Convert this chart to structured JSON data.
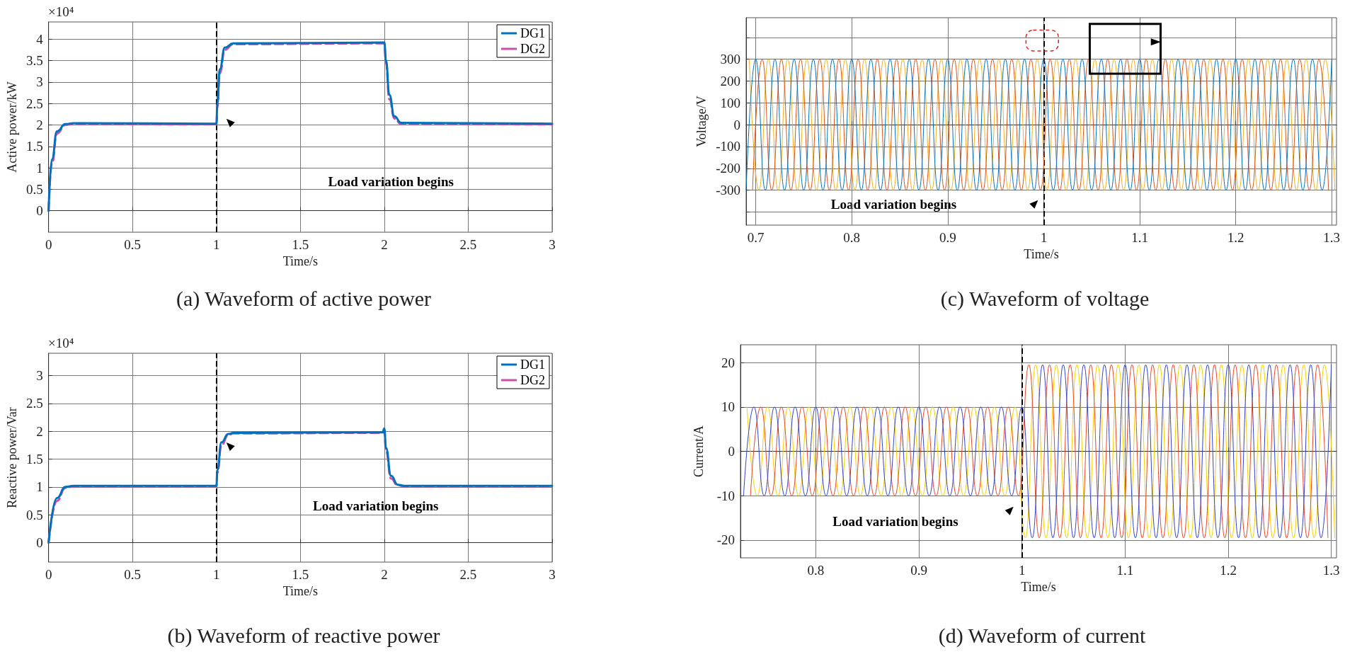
{
  "chart_data": [
    {
      "type": "line",
      "title": "(a) Waveform of active power",
      "xlabel": "Time/s",
      "ylabel": "Active power/kW",
      "annotations": [
        "×10⁴",
        "Load variation begins"
      ],
      "xlim": [
        0,
        3
      ],
      "xticks": [
        0,
        0.5,
        1,
        1.5,
        2,
        2.5,
        3
      ],
      "ylim": [
        -0.5,
        4.4
      ],
      "yticks": [
        0,
        0.5,
        1,
        1.5,
        2,
        2.5,
        3,
        3.5,
        4
      ],
      "grid": true,
      "legend": "top right",
      "marker": "none",
      "ref_lines": [
        {
          "axis": "x",
          "value": 1,
          "color": "#000000",
          "line_style": "dashed"
        }
      ],
      "series": [
        {
          "name": "DG1",
          "color": "#0072bd",
          "line_style": "solid",
          "x": [
            0,
            0.02,
            0.05,
            0.1,
            0.15,
            1,
            1.005,
            1.02,
            1.05,
            1.1,
            2,
            2.01,
            2.03,
            2.06,
            2.1,
            3
          ],
          "values": [
            0,
            1.2,
            1.85,
            2.02,
            2.04,
            2.03,
            2.5,
            3.3,
            3.8,
            3.9,
            3.92,
            3.5,
            2.7,
            2.2,
            2.05,
            2.03
          ]
        },
        {
          "name": "DG2",
          "color": "#cc4fa8",
          "line_style": "dashed",
          "x": [
            0,
            0.02,
            0.05,
            0.1,
            0.15,
            1,
            1.005,
            1.02,
            1.05,
            1.1,
            2,
            2.01,
            2.03,
            2.06,
            2.1,
            3
          ],
          "values": [
            0,
            1.1,
            1.8,
            2,
            2.02,
            2.01,
            2.4,
            3.2,
            3.75,
            3.88,
            3.9,
            3.45,
            2.6,
            2.15,
            2.02,
            2.01
          ]
        }
      ]
    },
    {
      "type": "line",
      "title": "(c) Waveform of voltage",
      "xlabel": "Time/s",
      "ylabel": "Voltage/V",
      "annotations": [
        "Load variation begins"
      ],
      "xlim": [
        0.69,
        1.305
      ],
      "xticks": [
        0.7,
        0.8,
        0.9,
        1,
        1.1,
        1.2,
        1.3
      ],
      "ylim": [
        -460,
        490
      ],
      "yticks": [
        {
          "value": -400,
          "label": null
        },
        -300,
        -200,
        -100,
        0,
        100,
        200,
        300,
        {
          "value": 400,
          "label": null
        }
      ],
      "grid": true,
      "marker": "none",
      "ref_lines": [
        {
          "axis": "x",
          "value": 1,
          "color": "#000000",
          "line_style": "dashed"
        }
      ],
      "series": [
        {
          "color": "#0072bd",
          "x": [
            0.69,
            0.7,
            0.71,
            0.72,
            0.73,
            0.74,
            0.75,
            0.76,
            0.77,
            0.78,
            0.79,
            0.8,
            0.81,
            0.82,
            0.83,
            0.84,
            0.85,
            0.86,
            0.87,
            0.88,
            0.89,
            0.9,
            0.91,
            0.92,
            0.93,
            0.94,
            0.95,
            0.96,
            0.97,
            0.98,
            0.99,
            1,
            1.01,
            1.02,
            1.03,
            1.04,
            1.05,
            1.06,
            1.07,
            1.08,
            1.09,
            1.1,
            1.11,
            1.12,
            1.13,
            1.14,
            1.15,
            1.16,
            1.17,
            1.18,
            1.19,
            1.2,
            1.21,
            1.22,
            1.23,
            1.24,
            1.25,
            1.26,
            1.27,
            1.28,
            1.29,
            1.3
          ],
          "values": [
            -300,
            300,
            -300,
            300,
            -300,
            300,
            -300,
            300,
            -300,
            300,
            -300,
            300,
            -300,
            300,
            -300,
            300,
            -300,
            300,
            -300,
            300,
            -300,
            300,
            -300,
            300,
            -300,
            300,
            -300,
            300,
            -300,
            300,
            -300,
            300,
            -300,
            300,
            -300,
            300,
            -300,
            300,
            -300,
            300,
            -300,
            300,
            -300,
            300,
            -300,
            300,
            -300,
            300,
            -300,
            300,
            -300,
            300,
            -300,
            300,
            -300,
            300,
            -300,
            300,
            -300,
            300,
            -300,
            300
          ]
        },
        {
          "color": "#d95319",
          "x": [
            0.6967,
            0.7067,
            0.7167,
            0.7267,
            0.7367,
            0.7467,
            0.7567,
            0.7667,
            0.7767,
            0.7867,
            0.7967,
            0.8067,
            0.8167,
            0.8267,
            0.8367,
            0.8467,
            0.8567,
            0.8667,
            0.8767,
            0.8867,
            0.8967,
            0.9067,
            0.9167,
            0.9267,
            0.9367,
            0.9467,
            0.9567,
            0.9667,
            0.9767,
            0.9867,
            0.9967,
            1.0067,
            1.0167,
            1.0267,
            1.0367,
            1.0467,
            1.0567,
            1.0667,
            1.0767,
            1.0867,
            1.0967,
            1.1067,
            1.1167,
            1.1267,
            1.1367,
            1.1467,
            1.1567,
            1.1667,
            1.1767,
            1.1867,
            1.1967,
            1.2067,
            1.2167,
            1.2267,
            1.2367,
            1.2467,
            1.2567,
            1.2667,
            1.2767,
            1.2867,
            1.2967
          ],
          "values": [
            -300,
            300,
            -300,
            300,
            -300,
            300,
            -300,
            300,
            -300,
            300,
            -300,
            300,
            -300,
            300,
            -300,
            300,
            -300,
            300,
            -300,
            300,
            -300,
            300,
            -300,
            300,
            -300,
            300,
            -300,
            300,
            -300,
            300,
            -300,
            300,
            -300,
            300,
            -300,
            300,
            -300,
            300,
            -300,
            300,
            -300,
            300,
            -300,
            300,
            -300,
            300,
            -300,
            300,
            -300,
            300,
            -300,
            300,
            -300,
            300,
            -300,
            300,
            -300,
            300,
            -300,
            300,
            -300
          ]
        },
        {
          "color": "#edb120",
          "x": [
            0.6933,
            0.7033,
            0.7133,
            0.7233,
            0.7333,
            0.7433,
            0.7533,
            0.7633,
            0.7733,
            0.7833,
            0.7933,
            0.8033,
            0.8133,
            0.8233,
            0.8333,
            0.8433,
            0.8533,
            0.8633,
            0.8733,
            0.8833,
            0.8933,
            0.9033,
            0.9133,
            0.9233,
            0.9333,
            0.9433,
            0.9533,
            0.9633,
            0.9733,
            0.9833,
            0.9933,
            1.0033,
            1.0133,
            1.0233,
            1.0333,
            1.0433,
            1.0533,
            1.0633,
            1.0733,
            1.0833,
            1.0933,
            1.1033,
            1.1133,
            1.1233,
            1.1333,
            1.1433,
            1.1533,
            1.1633,
            1.1733,
            1.1833,
            1.1933,
            1.2033,
            1.2133,
            1.2233,
            1.2333,
            1.2433,
            1.2533,
            1.2633,
            1.2733,
            1.2833,
            1.2933,
            1.3033
          ],
          "values": [
            300,
            -300,
            300,
            -300,
            300,
            -300,
            300,
            -300,
            300,
            -300,
            300,
            -300,
            300,
            -300,
            300,
            -300,
            300,
            -300,
            300,
            -300,
            300,
            -300,
            300,
            -300,
            300,
            -300,
            300,
            -300,
            300,
            -300,
            300,
            -300,
            300,
            -300,
            300,
            -300,
            300,
            -300,
            300,
            -300,
            300,
            -300,
            300,
            -300,
            300,
            -300,
            300,
            -300,
            300,
            -300,
            300,
            -300,
            300,
            -300,
            300,
            -300,
            300,
            -300,
            300,
            -300,
            300,
            -300
          ]
        }
      ]
    },
    {
      "type": "line",
      "title": "(b) Waveform of reactive power",
      "xlabel": "Time/s",
      "ylabel": "Reactive power/Var",
      "annotations": [
        "×10⁴",
        "Load variation begins"
      ],
      "xlim": [
        0,
        3
      ],
      "xticks": [
        0,
        0.5,
        1,
        1.5,
        2,
        2.5,
        3
      ],
      "ylim": [
        -0.35,
        3.4
      ],
      "yticks": [
        0,
        0.5,
        1,
        1.5,
        2,
        2.5,
        3
      ],
      "grid": true,
      "legend": "top right",
      "marker": "none",
      "ref_lines": [
        {
          "axis": "x",
          "value": 1,
          "color": "#000000",
          "line_style": "dashed"
        }
      ],
      "series": [
        {
          "name": "DG1",
          "color": "#0072bd",
          "line_style": "solid",
          "x": [
            0,
            0.05,
            0.1,
            0.15,
            1,
            1.005,
            1.03,
            1.07,
            1.1,
            1.99,
            2,
            2.01,
            2.04,
            2.08,
            2.12,
            3
          ],
          "values": [
            0,
            0.8,
            1,
            1.02,
            1.02,
            1.3,
            1.8,
            1.95,
            1.97,
            1.98,
            2.05,
            1.7,
            1.2,
            1.04,
            1.02,
            1.02
          ]
        },
        {
          "name": "DG2",
          "color": "#cc4fa8",
          "line_style": "dashed",
          "x": [
            0,
            0.05,
            0.1,
            0.15,
            1,
            1.005,
            1.03,
            1.07,
            1.1,
            1.99,
            2,
            2.01,
            2.04,
            2.08,
            2.12,
            3
          ],
          "values": [
            0,
            0.75,
            0.98,
            1.01,
            1.01,
            1.25,
            1.75,
            1.93,
            1.96,
            1.97,
            2.02,
            1.65,
            1.15,
            1.03,
            1.01,
            1.01
          ]
        }
      ]
    },
    {
      "type": "line",
      "title": "(d) Waveform of current",
      "xlabel": "Time/s",
      "ylabel": "Current/A",
      "annotations": [
        "Load variation begins"
      ],
      "xlim": [
        0.727,
        1.305
      ],
      "xticks": [
        0.8,
        0.9,
        1,
        1.1,
        1.2,
        1.3
      ],
      "ylim": [
        -24,
        24
      ],
      "yticks": [
        -20,
        -10,
        0,
        10,
        20
      ],
      "grid": true,
      "marker": "none",
      "ref_lines": [
        {
          "axis": "x",
          "value": 1,
          "color": "#000000",
          "line_style": "dashed"
        }
      ],
      "series": [
        {
          "color": "#3344cc",
          "x": [
            0.73,
            0.74,
            0.75,
            0.76,
            0.77,
            0.78,
            0.79,
            0.8,
            0.81,
            0.82,
            0.83,
            0.84,
            0.85,
            0.86,
            0.87,
            0.88,
            0.89,
            0.9,
            0.91,
            0.92,
            0.93,
            0.94,
            0.95,
            0.96,
            0.97,
            0.98,
            0.99,
            1,
            1.01,
            1.02,
            1.03,
            1.04,
            1.05,
            1.06,
            1.07,
            1.08,
            1.09,
            1.1,
            1.11,
            1.12,
            1.13,
            1.14,
            1.15,
            1.16,
            1.17,
            1.18,
            1.19,
            1.2,
            1.21,
            1.22,
            1.23,
            1.24,
            1.25,
            1.26,
            1.27,
            1.28,
            1.29,
            1.3
          ],
          "values": [
            -10,
            10,
            -10,
            10,
            -10,
            10,
            -10,
            10,
            -10,
            10,
            -10,
            10,
            -10,
            10,
            -10,
            10,
            -10,
            10,
            -10,
            10,
            -10,
            10,
            -10,
            10,
            -10,
            10,
            -10,
            10,
            -19.5,
            19.5,
            -19.5,
            19.5,
            -19.5,
            19.5,
            -19.5,
            19.5,
            -19.5,
            19.5,
            -19.5,
            19.5,
            -19.5,
            19.5,
            -19.5,
            19.5,
            -19.5,
            19.5,
            -19.5,
            19.5,
            -19.5,
            19.5,
            -19.5,
            19.5,
            -19.5,
            19.5,
            -19.5,
            19.5,
            -19.5,
            19.5
          ]
        },
        {
          "color": "#e8482a",
          "x": [
            0.7367,
            0.7467,
            0.7567,
            0.7667,
            0.7767,
            0.7867,
            0.7967,
            0.8067,
            0.8167,
            0.8267,
            0.8367,
            0.8467,
            0.8567,
            0.8667,
            0.8767,
            0.8867,
            0.8967,
            0.9067,
            0.9167,
            0.9267,
            0.9367,
            0.9467,
            0.9567,
            0.9667,
            0.9767,
            0.9867,
            0.9967,
            1.0067,
            1.0167,
            1.0267,
            1.0367,
            1.0467,
            1.0567,
            1.0667,
            1.0767,
            1.0867,
            1.0967,
            1.1067,
            1.1167,
            1.1267,
            1.1367,
            1.1467,
            1.1567,
            1.1667,
            1.1767,
            1.1867,
            1.1967,
            1.2067,
            1.2167,
            1.2267,
            1.2367,
            1.2467,
            1.2567,
            1.2667,
            1.2767,
            1.2867,
            1.2967
          ],
          "values": [
            -10,
            10,
            -10,
            10,
            -10,
            10,
            -10,
            10,
            -10,
            10,
            -10,
            10,
            -10,
            10,
            -10,
            10,
            -10,
            10,
            -10,
            10,
            -10,
            10,
            -10,
            10,
            -10,
            10,
            -10,
            19.5,
            -19.5,
            19.5,
            -19.5,
            19.5,
            -19.5,
            19.5,
            -19.5,
            19.5,
            -19.5,
            19.5,
            -19.5,
            19.5,
            -19.5,
            19.5,
            -19.5,
            19.5,
            -19.5,
            19.5,
            -19.5,
            19.5,
            -19.5,
            19.5,
            -19.5,
            19.5,
            -19.5,
            19.5,
            -19.5,
            19.5,
            -19.5
          ]
        },
        {
          "color": "#f5d000",
          "x": [
            0.7333,
            0.7433,
            0.7533,
            0.7633,
            0.7733,
            0.7833,
            0.7933,
            0.8033,
            0.8133,
            0.8233,
            0.8333,
            0.8433,
            0.8533,
            0.8633,
            0.8733,
            0.8833,
            0.8933,
            0.9033,
            0.9133,
            0.9233,
            0.9333,
            0.9433,
            0.9533,
            0.9633,
            0.9733,
            0.9833,
            0.9933,
            1.0033,
            1.0133,
            1.0233,
            1.0333,
            1.0433,
            1.0533,
            1.0633,
            1.0733,
            1.0833,
            1.0933,
            1.1033,
            1.1133,
            1.1233,
            1.1333,
            1.1433,
            1.1533,
            1.1633,
            1.1733,
            1.1833,
            1.1933,
            1.2033,
            1.2133,
            1.2233,
            1.2333,
            1.2433,
            1.2533,
            1.2633,
            1.2733,
            1.2833,
            1.2933,
            1.3033
          ],
          "values": [
            10,
            -10,
            10,
            -10,
            10,
            -10,
            10,
            -10,
            10,
            -10,
            10,
            -10,
            10,
            -10,
            10,
            -10,
            10,
            -10,
            10,
            -10,
            10,
            -10,
            10,
            -10,
            10,
            -10,
            10,
            -19.5,
            19.5,
            -19.5,
            19.5,
            -19.5,
            19.5,
            -19.5,
            19.5,
            -19.5,
            19.5,
            -19.5,
            19.5,
            -19.5,
            19.5,
            -19.5,
            19.5,
            -19.5,
            19.5,
            -19.5,
            19.5,
            -19.5,
            19.5,
            -19.5,
            19.5,
            -19.5,
            19.5,
            -19.5,
            19.5,
            -19.5,
            19.5,
            -19.5
          ]
        }
      ]
    }
  ]
}
